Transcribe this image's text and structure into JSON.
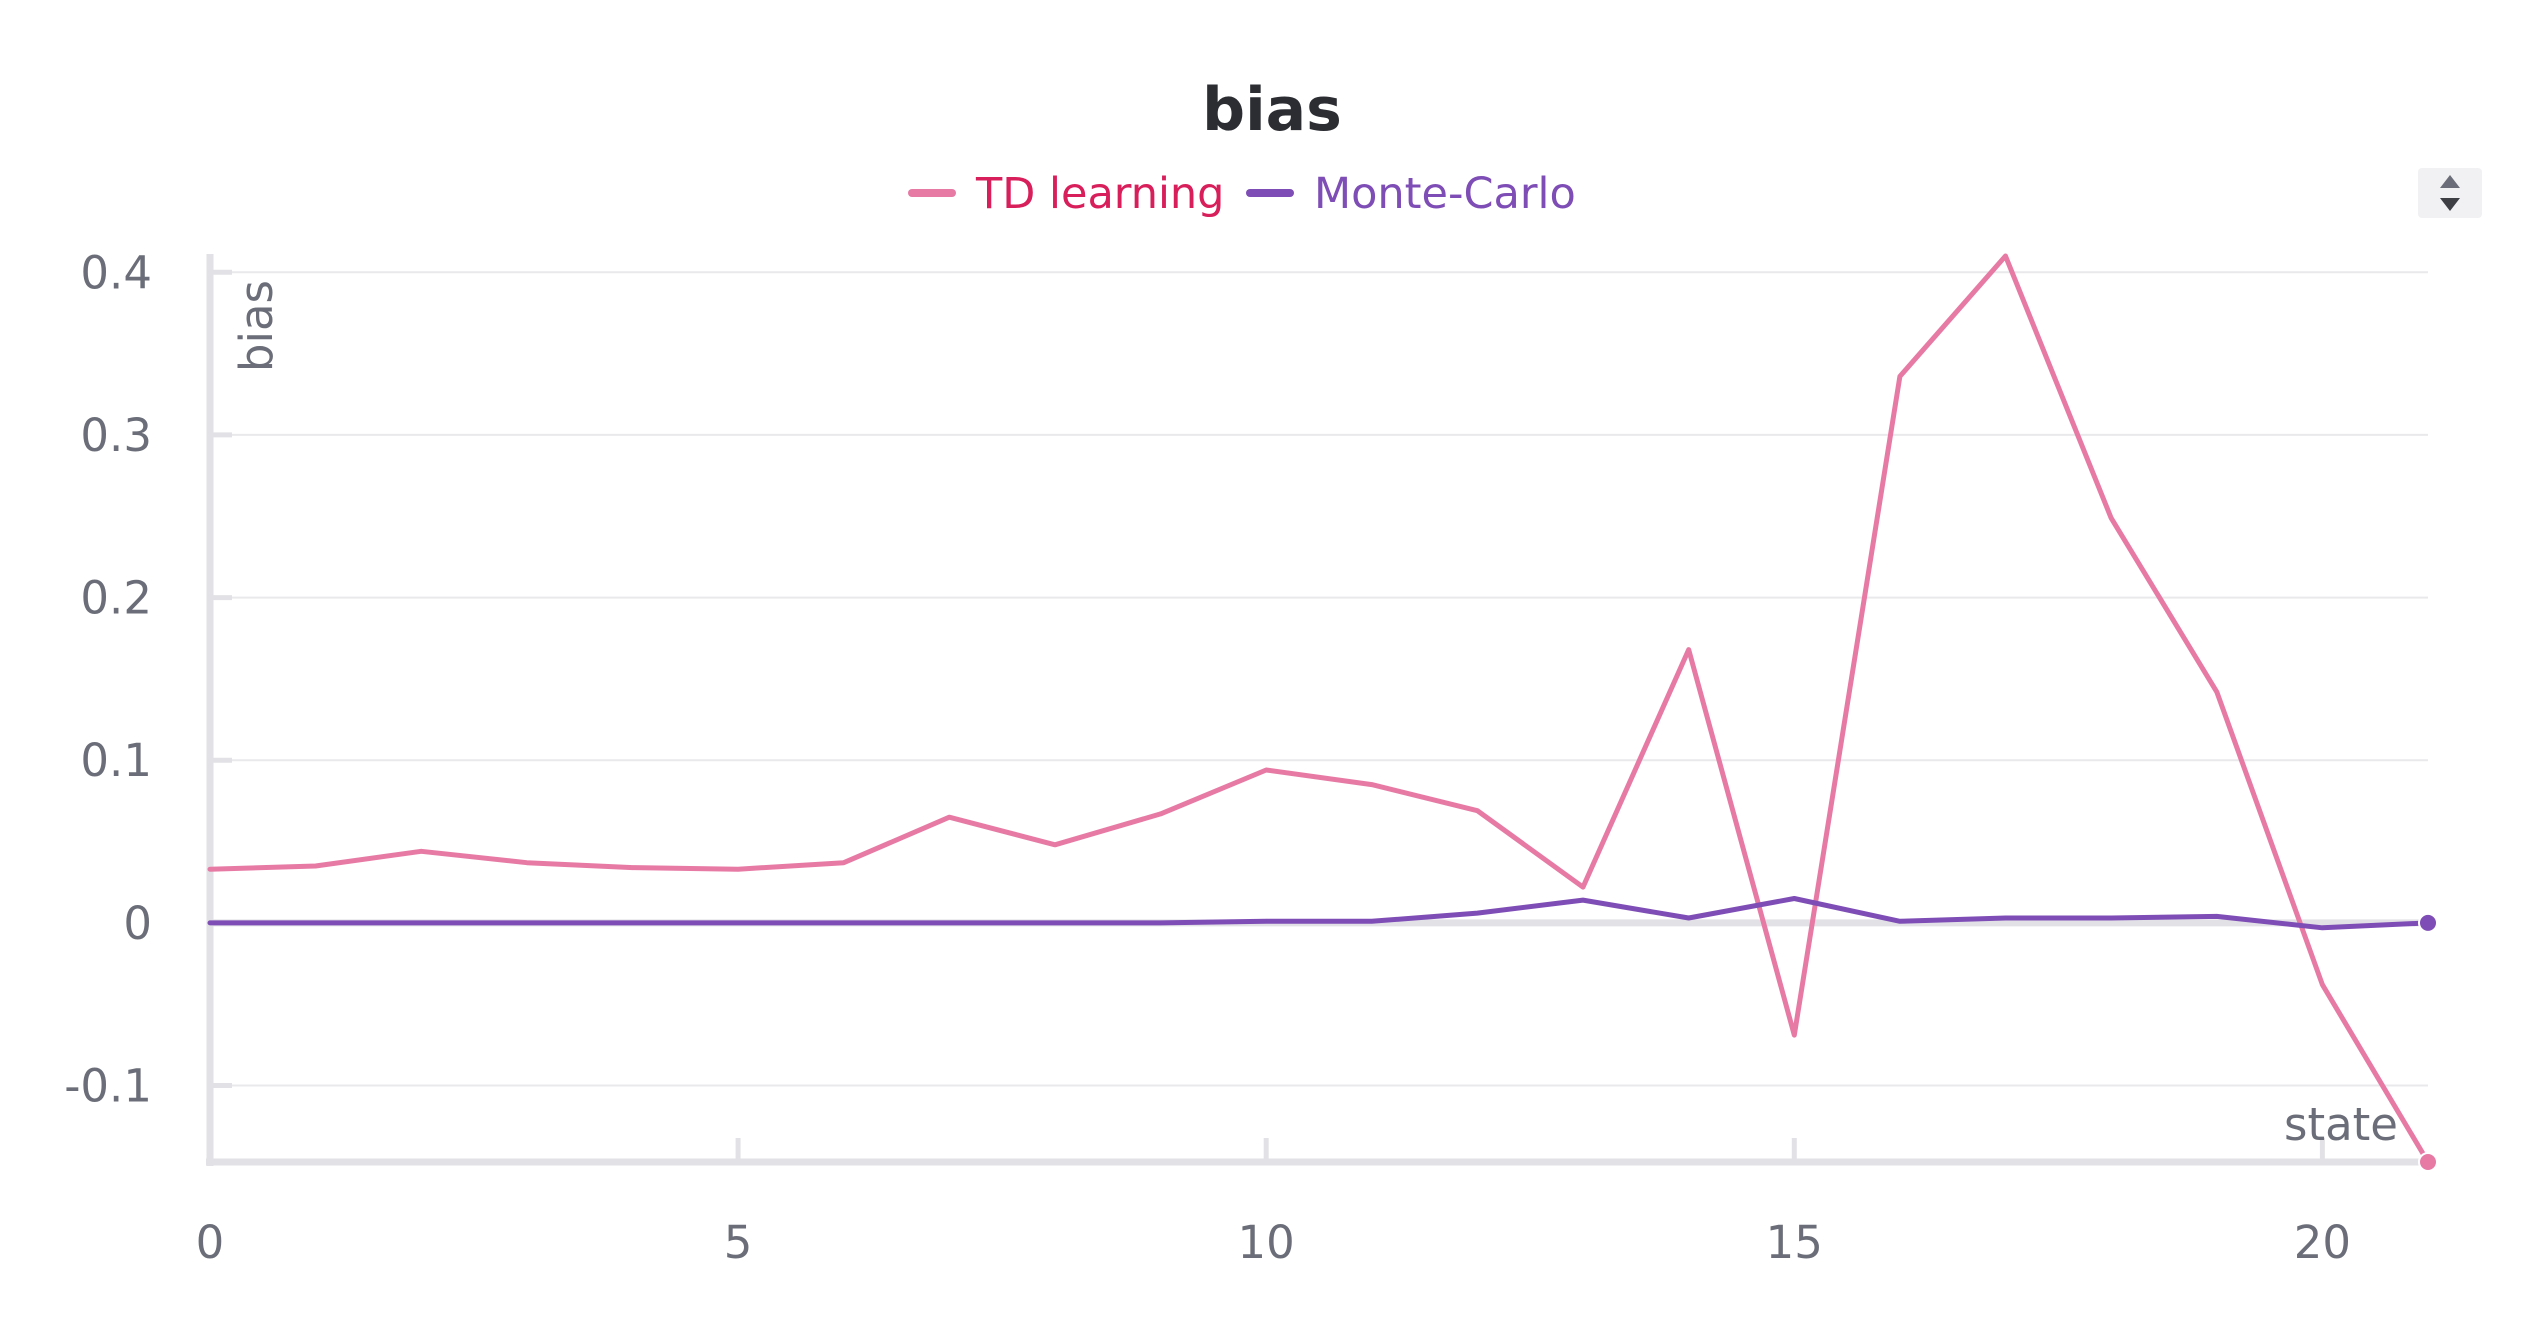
{
  "chart_data": {
    "type": "line",
    "title": "bias",
    "xlabel": "state",
    "ylabel": "bias",
    "xlim": [
      0,
      21
    ],
    "ylim": [
      -0.147,
      0.41
    ],
    "x_ticks": [
      0,
      5,
      10,
      15,
      20
    ],
    "y_ticks": [
      0.4,
      0.3,
      0.2,
      0.1,
      0,
      -0.1
    ],
    "y_tick_labels": [
      "0.4",
      "0.3",
      "0.2",
      "0.1",
      "0",
      "-0.1"
    ],
    "x_tick_labels": [
      "0",
      "5",
      "10",
      "15",
      "20"
    ],
    "grid": true,
    "legend_position": "top-center",
    "x": [
      0,
      1,
      2,
      3,
      4,
      5,
      6,
      7,
      8,
      9,
      10,
      11,
      12,
      13,
      14,
      15,
      16,
      17,
      18,
      19,
      20,
      21
    ],
    "series": [
      {
        "name": "TD learning",
        "color": "#e67aa4",
        "values": [
          0.033,
          0.035,
          0.044,
          0.037,
          0.034,
          0.033,
          0.037,
          0.065,
          0.048,
          0.067,
          0.094,
          0.085,
          0.069,
          0.022,
          0.168,
          -0.069,
          0.336,
          0.41,
          0.249,
          0.142,
          -0.038,
          -0.147
        ]
      },
      {
        "name": "Monte-Carlo",
        "color": "#7e4db5",
        "values": [
          0,
          0,
          0,
          0,
          0,
          0,
          0,
          0,
          0,
          0,
          0.001,
          0.001,
          0.006,
          0.014,
          0.003,
          0.015,
          0.001,
          0.003,
          0.003,
          0.004,
          -0.003,
          0
        ]
      }
    ]
  },
  "legend_text_colors": {
    "TD learning": "#d81e5b",
    "Monte-Carlo": "#7e4db5"
  }
}
